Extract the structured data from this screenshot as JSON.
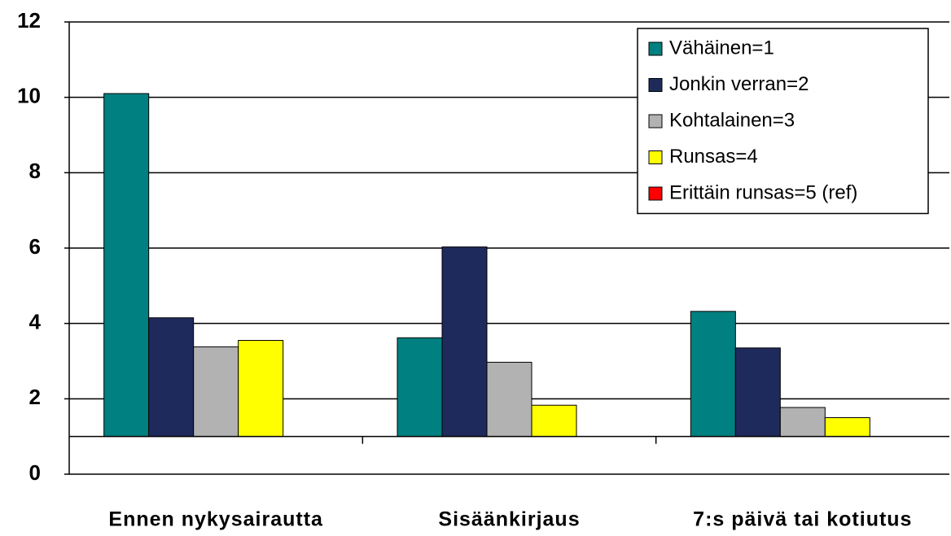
{
  "chart_data": {
    "type": "bar",
    "categories": [
      "Ennen nykysairautta",
      "Sisäänkirjaus",
      "7:s päivä tai kotiutus"
    ],
    "series": [
      {
        "name": "Vähäinen=1",
        "color": "#008080",
        "values": [
          10.1,
          3.62,
          4.32
        ]
      },
      {
        "name": "Jonkin verran=2",
        "color": "#1f2a5c",
        "values": [
          4.15,
          6.03,
          3.35
        ]
      },
      {
        "name": "Kohtalainen=3",
        "color": "#b2b2b2",
        "values": [
          3.38,
          2.97,
          1.77
        ]
      },
      {
        "name": "Runsas=4",
        "color": "#ffff00",
        "values": [
          3.55,
          1.83,
          1.5
        ]
      },
      {
        "name": "Erittäin runsas=5 (ref)",
        "color": "#ff0000",
        "values": [
          1,
          1,
          1
        ]
      }
    ],
    "bar_base": 1,
    "ylim": [
      0,
      12
    ],
    "yticks": [
      0,
      2,
      4,
      6,
      8,
      10,
      12
    ],
    "grid": true,
    "legend": "top-right"
  }
}
